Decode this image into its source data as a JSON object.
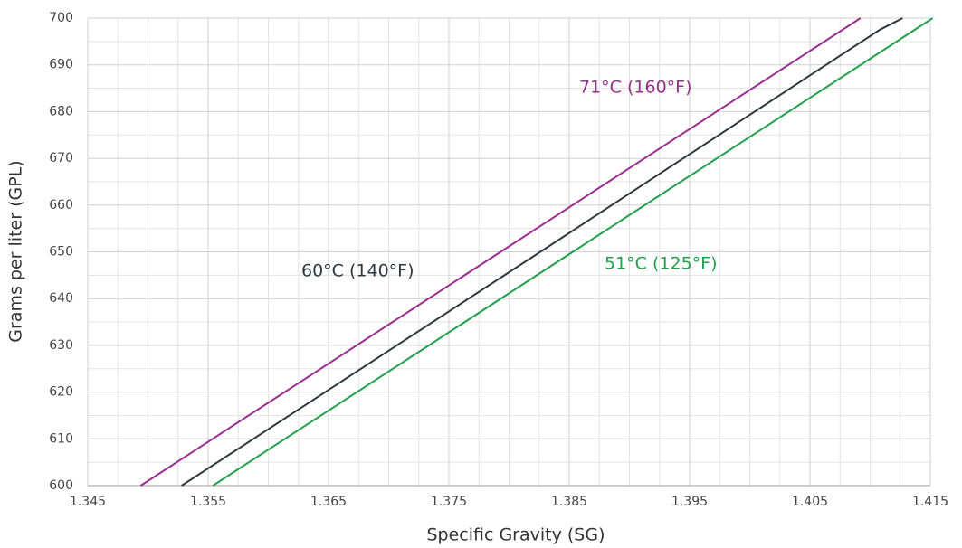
{
  "chart_data": {
    "type": "line",
    "xlabel": "Specific Gravity (SG)",
    "ylabel": "Grams per liter (GPL)",
    "xlim": [
      1.345,
      1.415
    ],
    "xticks": [
      1.345,
      1.355,
      1.365,
      1.375,
      1.385,
      1.395,
      1.405,
      1.415
    ],
    "ylim": [
      600,
      700
    ],
    "yticks": [
      600,
      610,
      620,
      630,
      640,
      650,
      660,
      670,
      680,
      690,
      700
    ],
    "grid": true,
    "series": [
      {
        "name": "71°C (160°F)",
        "color": "#9b2d8e",
        "x": [
          1.3494,
          1.3793,
          1.4092
        ],
        "values": [
          600,
          650,
          700
        ]
      },
      {
        "name": "60°C (140°F)",
        "color": "#2b3a42",
        "x": [
          1.3528,
          1.3826,
          1.4108,
          1.4127
        ],
        "values": [
          600,
          650,
          697.5,
          700
        ]
      },
      {
        "name": "51°C (125°F)",
        "color": "#22a04b",
        "x": [
          1.3554,
          1.3853,
          1.4152
        ],
        "values": [
          600,
          650,
          700
        ]
      }
    ]
  }
}
